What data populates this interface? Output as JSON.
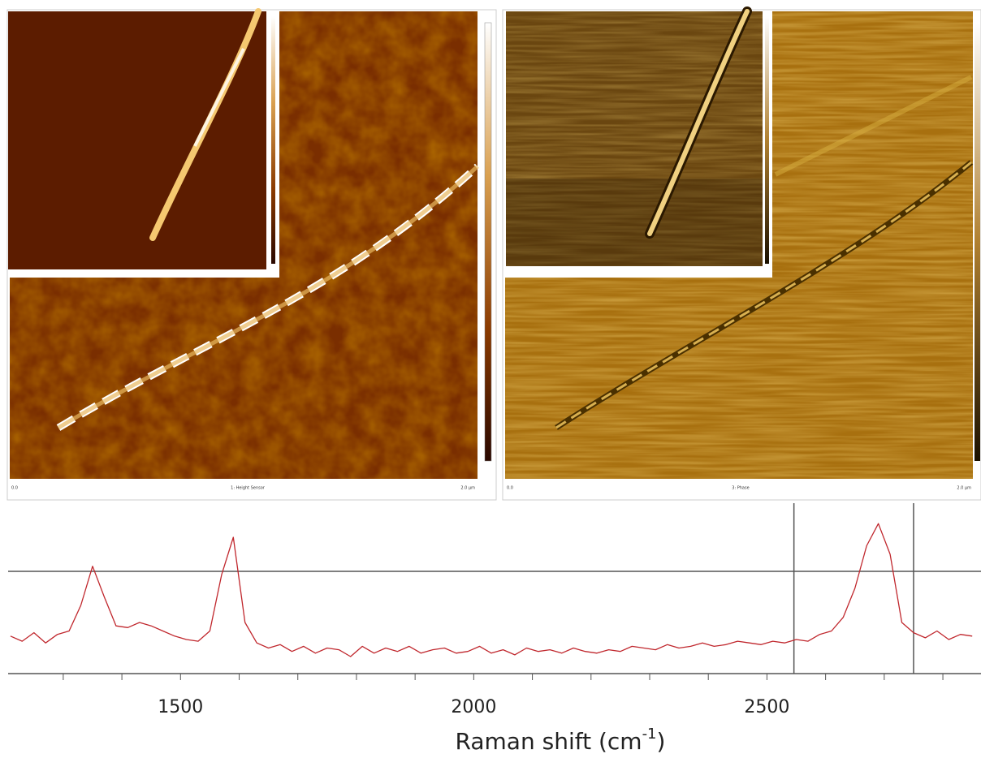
{
  "afm": {
    "panels": [
      {
        "caption": "1: Height Sensor",
        "left": "0.0",
        "right": "2.0 µm"
      },
      {
        "caption": "3: Phase",
        "left": "0.0",
        "right": "2.0 µm"
      }
    ]
  },
  "chart_data": {
    "type": "line",
    "xlabel": {
      "text": "Raman shift (cm",
      "sup": "-1",
      "tail": ")"
    },
    "color": "#c0272d",
    "x": [
      1210,
      1230,
      1250,
      1270,
      1290,
      1310,
      1330,
      1350,
      1370,
      1390,
      1410,
      1430,
      1450,
      1470,
      1490,
      1510,
      1530,
      1550,
      1570,
      1590,
      1610,
      1630,
      1650,
      1670,
      1690,
      1710,
      1730,
      1750,
      1770,
      1790,
      1810,
      1830,
      1850,
      1870,
      1890,
      1910,
      1930,
      1950,
      1970,
      1990,
      2010,
      2030,
      2050,
      2070,
      2090,
      2110,
      2130,
      2150,
      2170,
      2190,
      2210,
      2230,
      2250,
      2270,
      2290,
      2310,
      2330,
      2350,
      2370,
      2390,
      2410,
      2430,
      2450,
      2470,
      2490,
      2510,
      2530,
      2550,
      2570,
      2590,
      2610,
      2630,
      2650,
      2670,
      2690,
      2710,
      2730,
      2750,
      2770,
      2790,
      2810,
      2830,
      2850
    ],
    "values": [
      22,
      19,
      24,
      18,
      23,
      25,
      40,
      63,
      45,
      28,
      27,
      30,
      28,
      25,
      22,
      20,
      19,
      25,
      58,
      80,
      30,
      18,
      15,
      17,
      13,
      16,
      12,
      15,
      14,
      10,
      16,
      12,
      15,
      13,
      16,
      12,
      14,
      15,
      12,
      13,
      16,
      12,
      14,
      11,
      15,
      13,
      14,
      12,
      15,
      13,
      12,
      14,
      13,
      16,
      15,
      14,
      17,
      15,
      16,
      18,
      16,
      17,
      19,
      18,
      17,
      19,
      18,
      20,
      19,
      23,
      25,
      33,
      50,
      75,
      88,
      70,
      30,
      24,
      21,
      25,
      20,
      23,
      22
    ],
    "xlim": [
      1206,
      2865
    ],
    "ylim": [
      0,
      100
    ],
    "xticks": [
      1500,
      2000,
      2500
    ],
    "xminor": [
      1300,
      1400,
      1600,
      1700,
      1800,
      1900,
      2100,
      2200,
      2300,
      2400,
      2600,
      2700,
      2800
    ],
    "cursors": {
      "x": [
        2546,
        2750
      ],
      "y": [
        60
      ]
    }
  }
}
